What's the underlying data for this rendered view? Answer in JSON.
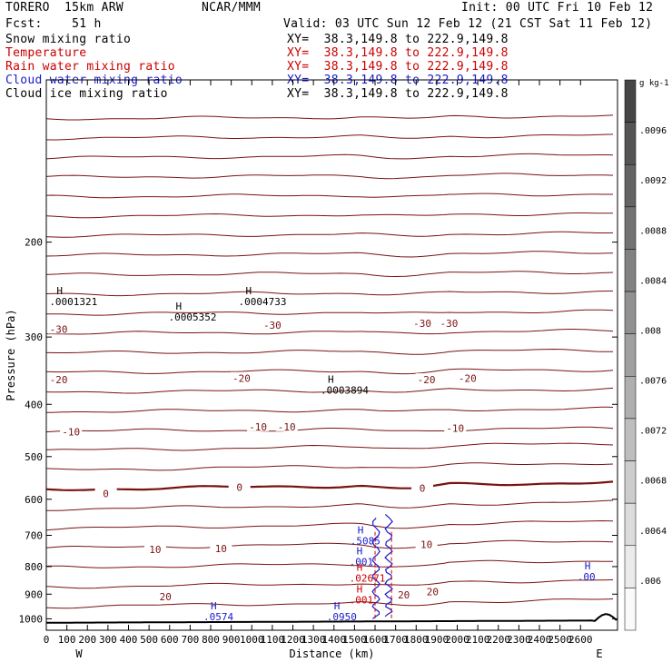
{
  "header": {
    "model": "TORERO  15km ARW",
    "center": "NCAR/MMM",
    "init": "Init: 00 UTC Fri 10 Feb 12",
    "fcst": "Fcst:    51 h",
    "valid": "Valid: 03 UTC Sun 12 Feb 12 (21 CST Sat 11 Feb 12)"
  },
  "fields": [
    {
      "name": "Snow mixing ratio",
      "xy": "XY=  38.3,149.8 to 222.9,149.8",
      "color": "#000000"
    },
    {
      "name": "Temperature",
      "xy": "XY=  38.3,149.8 to 222.9,149.8",
      "color": "#cc0000"
    },
    {
      "name": "Rain water mixing ratio",
      "xy": "XY=  38.3,149.8 to 222.9,149.8",
      "color": "#cc0000"
    },
    {
      "name": "Cloud water mixing ratio",
      "xy": "XY=  38.3,149.8 to 222.9,149.8",
      "color": "#1a1acc"
    },
    {
      "name": "Cloud ice mixing ratio",
      "xy": "XY=  38.3,149.8 to 222.9,149.8",
      "color": "#000000"
    }
  ],
  "chart_data": {
    "type": "cross-section",
    "xlabel": "Distance (km)",
    "ylabel": "Pressure (hPa)",
    "x_ticks": [
      0,
      100,
      200,
      300,
      400,
      500,
      600,
      700,
      800,
      900,
      1000,
      1100,
      1200,
      1300,
      1400,
      1500,
      1600,
      1700,
      1800,
      1900,
      2000,
      2100,
      2200,
      2300,
      2400,
      2500,
      2600
    ],
    "x_labels": [
      "0",
      "100",
      "200",
      "300",
      "400",
      "500",
      "600",
      "700",
      "800",
      "900",
      "1000",
      "1100",
      "1200",
      "1300",
      "1400",
      "1500",
      "1600",
      "1700",
      "1800",
      "1900",
      "2000",
      "2100",
      "2200",
      "2300",
      "2400",
      "2500",
      "2600"
    ],
    "xlim": [
      0,
      2780
    ],
    "x_end_labels": {
      "left": "W",
      "right": "E"
    },
    "y_ticks": [
      200,
      300,
      400,
      500,
      600,
      700,
      800,
      900,
      1000
    ],
    "y_labels": [
      "200",
      "300",
      "400",
      "500",
      "600",
      "700",
      "800",
      "900",
      "1000"
    ],
    "ylim_top": 100,
    "ylim_bottom": 1050,
    "y_scale": "log",
    "colorbar": {
      "unit": "g kg-1",
      "tick_labels": [
        ".006",
        ".0064",
        ".0068",
        ".0072",
        ".0076",
        ".008",
        ".0084",
        ".0088",
        ".0092",
        ".0096"
      ],
      "n_levels": 13
    },
    "temperature_contour_labels": [
      {
        "text": "-30",
        "x": 60,
        "p": 290
      },
      {
        "text": "-30",
        "x": 1100,
        "p": 285
      },
      {
        "text": "-30",
        "x": 1830,
        "p": 283
      },
      {
        "text": "-30",
        "x": 1960,
        "p": 283
      },
      {
        "text": "-20",
        "x": 60,
        "p": 360
      },
      {
        "text": "-20",
        "x": 950,
        "p": 358
      },
      {
        "text": "-20",
        "x": 1850,
        "p": 360
      },
      {
        "text": "-20",
        "x": 2050,
        "p": 358
      },
      {
        "text": "-10",
        "x": 120,
        "p": 450
      },
      {
        "text": "-10",
        "x": 1030,
        "p": 440
      },
      {
        "text": "-10",
        "x": 1170,
        "p": 440
      },
      {
        "text": "-10",
        "x": 1990,
        "p": 443
      },
      {
        "text": "0",
        "x": 290,
        "p": 585
      },
      {
        "text": "0",
        "x": 940,
        "p": 570
      },
      {
        "text": "0",
        "x": 1830,
        "p": 572
      },
      {
        "text": "10",
        "x": 530,
        "p": 743
      },
      {
        "text": "10",
        "x": 850,
        "p": 740
      },
      {
        "text": "10",
        "x": 1850,
        "p": 727
      },
      {
        "text": "20",
        "x": 580,
        "p": 910
      },
      {
        "text": "20",
        "x": 1740,
        "p": 902
      },
      {
        "text": "20",
        "x": 1880,
        "p": 890
      }
    ],
    "highs": [
      {
        "label": "H",
        "value": ".0001321",
        "x": 50,
        "p": 250,
        "color": "#000000"
      },
      {
        "label": "H",
        "value": ".0005352",
        "x": 630,
        "p": 267,
        "color": "#000000"
      },
      {
        "label": "H",
        "value": ".0004733",
        "x": 970,
        "p": 250,
        "color": "#000000"
      },
      {
        "label": "H",
        "value": ".0003894",
        "x": 1370,
        "p": 365,
        "color": "#000000"
      },
      {
        "label": "H",
        "value": ".5085",
        "x": 1515,
        "p": 695,
        "color": "#1a1acc"
      },
      {
        "label": "H",
        "value": ".001",
        "x": 1510,
        "p": 760,
        "color": "#1a1acc"
      },
      {
        "label": "H",
        "value": ".02671",
        "x": 1510,
        "p": 815,
        "color": "#cc0000"
      },
      {
        "label": "H",
        "value": ".001",
        "x": 1510,
        "p": 893,
        "color": "#cc0000"
      },
      {
        "label": "H",
        "value": ".0950",
        "x": 1400,
        "p": 960,
        "color": "#1a1acc"
      },
      {
        "label": "H",
        "value": ".0574",
        "x": 800,
        "p": 960,
        "color": "#1a1acc"
      },
      {
        "label": "H",
        "value": ".00",
        "x": 2620,
        "p": 810,
        "color": "#1a1acc"
      }
    ],
    "annotations": []
  }
}
